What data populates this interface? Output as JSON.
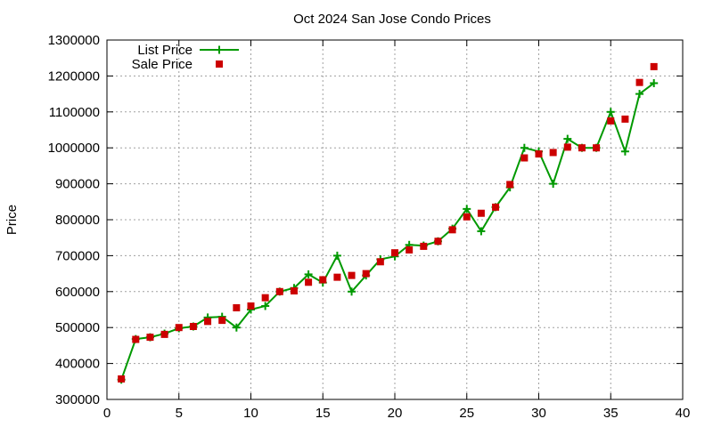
{
  "chart_data": {
    "type": "line",
    "title": "Oct 2024 San Jose Condo Prices",
    "xlabel": "",
    "ylabel": "Price",
    "xlim": [
      0,
      40
    ],
    "ylim": [
      300000,
      1300000
    ],
    "xticks": [
      0,
      5,
      10,
      15,
      20,
      25,
      30,
      35,
      40
    ],
    "yticks": [
      300000,
      400000,
      500000,
      600000,
      700000,
      800000,
      900000,
      1000000,
      1100000,
      1200000,
      1300000
    ],
    "grid": true,
    "legend_position": "top-left",
    "series": [
      {
        "name": "List Price",
        "style": "line-with-plus-markers",
        "color": "#009900",
        "x": [
          1,
          2,
          3,
          4,
          5,
          6,
          7,
          8,
          9,
          10,
          11,
          12,
          13,
          14,
          15,
          16,
          17,
          18,
          19,
          20,
          21,
          22,
          23,
          24,
          25,
          26,
          27,
          28,
          29,
          30,
          31,
          32,
          33,
          34,
          35,
          36,
          37,
          38
        ],
        "values": [
          355000,
          468000,
          473000,
          483000,
          498000,
          503000,
          528000,
          530000,
          500000,
          550000,
          560000,
          600000,
          610000,
          648000,
          625000,
          700000,
          600000,
          645000,
          690000,
          698000,
          730000,
          728000,
          740000,
          775000,
          830000,
          768000,
          835000,
          890000,
          1000000,
          990000,
          900000,
          1025000,
          1000000,
          1000000,
          1100000,
          990000,
          1150000,
          1180000
        ]
      },
      {
        "name": "Sale Price",
        "style": "square-markers",
        "color": "#cc0000",
        "x": [
          1,
          2,
          3,
          4,
          5,
          6,
          7,
          8,
          9,
          10,
          11,
          12,
          13,
          14,
          15,
          16,
          17,
          18,
          19,
          20,
          21,
          22,
          23,
          24,
          25,
          26,
          27,
          28,
          29,
          30,
          31,
          32,
          33,
          34,
          35,
          36,
          37,
          38
        ],
        "values": [
          357000,
          467000,
          473000,
          481000,
          500000,
          503000,
          517000,
          520000,
          555000,
          560000,
          583000,
          600000,
          602000,
          626000,
          633000,
          640000,
          645000,
          650000,
          683000,
          708000,
          716000,
          726000,
          740000,
          772000,
          808000,
          818000,
          835000,
          898000,
          972000,
          983000,
          987000,
          1002000,
          1000000,
          1000000,
          1075000,
          1080000,
          1182000,
          1226000
        ]
      }
    ]
  }
}
